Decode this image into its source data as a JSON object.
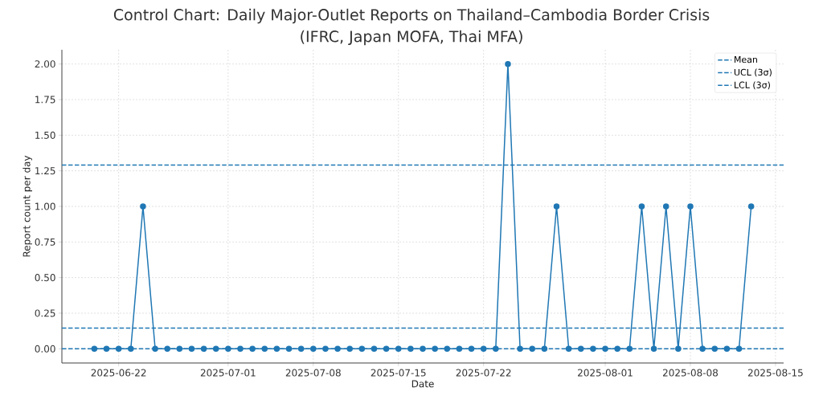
{
  "chart_data": {
    "type": "line",
    "title": "Control Chart: Daily Major-Outlet Reports on Thailand–Cambodia Border Crisis",
    "subtitle": "(IFRC, Japan MOFA, Thai MFA)",
    "xlabel": "Date",
    "ylabel": "Report count per day",
    "x": [
      "2025-06-20",
      "2025-06-21",
      "2025-06-22",
      "2025-06-23",
      "2025-06-24",
      "2025-06-25",
      "2025-06-26",
      "2025-06-27",
      "2025-06-28",
      "2025-06-29",
      "2025-06-30",
      "2025-07-01",
      "2025-07-02",
      "2025-07-03",
      "2025-07-04",
      "2025-07-05",
      "2025-07-06",
      "2025-07-07",
      "2025-07-08",
      "2025-07-09",
      "2025-07-10",
      "2025-07-11",
      "2025-07-12",
      "2025-07-13",
      "2025-07-14",
      "2025-07-15",
      "2025-07-16",
      "2025-07-17",
      "2025-07-18",
      "2025-07-19",
      "2025-07-20",
      "2025-07-21",
      "2025-07-22",
      "2025-07-23",
      "2025-07-24",
      "2025-07-25",
      "2025-07-26",
      "2025-07-27",
      "2025-07-28",
      "2025-07-29",
      "2025-07-30",
      "2025-07-31",
      "2025-08-01",
      "2025-08-02",
      "2025-08-03",
      "2025-08-04",
      "2025-08-05",
      "2025-08-06",
      "2025-08-07",
      "2025-08-08",
      "2025-08-09",
      "2025-08-10",
      "2025-08-11",
      "2025-08-12",
      "2025-08-13"
    ],
    "series": [
      {
        "color": "#1f77b4",
        "values": [
          0,
          0,
          0,
          0,
          1,
          0,
          0,
          0,
          0,
          0,
          0,
          0,
          0,
          0,
          0,
          0,
          0,
          0,
          0,
          0,
          0,
          0,
          0,
          0,
          0,
          0,
          0,
          0,
          0,
          0,
          0,
          0,
          0,
          0,
          2,
          0,
          0,
          0,
          1,
          0,
          0,
          0,
          0,
          0,
          0,
          1,
          0,
          1,
          0,
          1,
          0,
          0,
          0,
          0,
          1
        ]
      }
    ],
    "xlim": [
      "2025-06-17T08:00",
      "2025-08-15T16:00"
    ],
    "xticks": [
      "2025-06-22",
      "2025-07-01",
      "2025-07-08",
      "2025-07-15",
      "2025-07-22",
      "2025-08-01",
      "2025-08-08",
      "2025-08-15"
    ],
    "ylim": [
      -0.1,
      2.1
    ],
    "yticks": [
      {
        "value": 0,
        "label": "0.00"
      },
      {
        "value": 0.25,
        "label": "0.25"
      },
      {
        "value": 0.5,
        "label": "0.50"
      },
      {
        "value": 0.75,
        "label": "0.75"
      },
      {
        "value": 1,
        "label": "1.00"
      },
      {
        "value": 1.25,
        "label": "1.25"
      },
      {
        "value": 1.5,
        "label": "1.50"
      },
      {
        "value": 1.75,
        "label": "1.75"
      },
      {
        "value": 2,
        "label": "2.00"
      }
    ],
    "ref_lines": [
      {
        "axis": "y",
        "value": 0.145,
        "label": "Mean",
        "color": "#1f77b4",
        "line_style": "dashed"
      },
      {
        "axis": "y",
        "value": 1.29,
        "label": "UCL (3σ)",
        "color": "#1f77b4",
        "line_style": "dashed"
      },
      {
        "axis": "y",
        "value": 0,
        "label": "LCL (3σ)",
        "color": "#1f77b4",
        "line_style": "dashed"
      }
    ],
    "grid": true,
    "legend": "top right",
    "marker": "circle",
    "line_style": "solid"
  }
}
